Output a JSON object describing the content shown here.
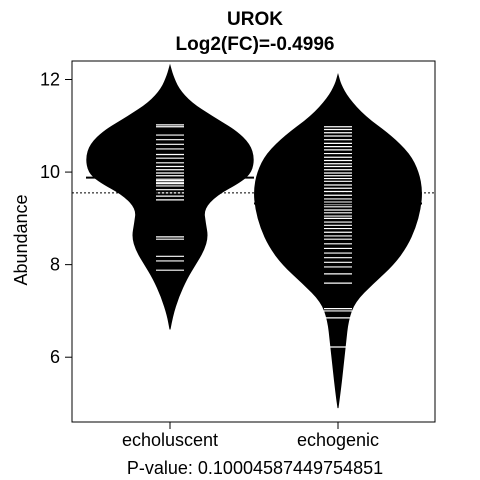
{
  "chart_data": {
    "type": "beanplot",
    "title": "UROK",
    "subtitle": "Log2(FC)=-0.4996",
    "xlabel": "P-value: 0.10004587449754851",
    "ylabel": "Abundance",
    "categories": [
      "echoluscent",
      "echogenic"
    ],
    "ylim": [
      4.6,
      12.4
    ],
    "yticks": [
      6,
      8,
      10,
      12
    ],
    "overall_mean": 9.55,
    "grid": false,
    "legend": "none",
    "colors": {
      "bean_fill": "#000000",
      "data_lines": "#ffffff",
      "axis": "#000000"
    },
    "beans": [
      {
        "name": "echoluscent",
        "mean": 9.88,
        "density_profile": [
          [
            6.6,
            0.0
          ],
          [
            6.9,
            0.03
          ],
          [
            7.3,
            0.1
          ],
          [
            7.7,
            0.2
          ],
          [
            8.0,
            0.3
          ],
          [
            8.3,
            0.4
          ],
          [
            8.6,
            0.45
          ],
          [
            8.9,
            0.42
          ],
          [
            9.2,
            0.4
          ],
          [
            9.5,
            0.55
          ],
          [
            9.8,
            0.85
          ],
          [
            10.0,
            0.97
          ],
          [
            10.3,
            1.0
          ],
          [
            10.6,
            0.95
          ],
          [
            10.9,
            0.78
          ],
          [
            11.2,
            0.5
          ],
          [
            11.5,
            0.25
          ],
          [
            11.8,
            0.1
          ],
          [
            12.1,
            0.03
          ],
          [
            12.3,
            0.0
          ]
        ],
        "observations": [
          7.88,
          8.08,
          8.18,
          8.55,
          8.6,
          9.4,
          9.48,
          9.55,
          9.62,
          9.7,
          9.75,
          9.78,
          9.82,
          9.85,
          9.92,
          9.98,
          10.05,
          10.12,
          10.2,
          10.3,
          10.38,
          10.5,
          10.6,
          10.7,
          10.8,
          10.98,
          11.02
        ]
      },
      {
        "name": "echogenic",
        "mean": 9.32,
        "density_profile": [
          [
            4.9,
            0.0
          ],
          [
            5.3,
            0.03
          ],
          [
            5.8,
            0.06
          ],
          [
            6.3,
            0.09
          ],
          [
            6.8,
            0.12
          ],
          [
            7.2,
            0.2
          ],
          [
            7.6,
            0.42
          ],
          [
            8.0,
            0.66
          ],
          [
            8.4,
            0.82
          ],
          [
            8.8,
            0.92
          ],
          [
            9.2,
            0.98
          ],
          [
            9.6,
            1.0
          ],
          [
            10.0,
            0.96
          ],
          [
            10.4,
            0.85
          ],
          [
            10.8,
            0.62
          ],
          [
            11.2,
            0.32
          ],
          [
            11.6,
            0.12
          ],
          [
            11.9,
            0.03
          ],
          [
            12.1,
            0.0
          ]
        ],
        "observations": [
          6.22,
          6.85,
          7.0,
          7.05,
          7.6,
          7.8,
          7.95,
          8.05,
          8.15,
          8.25,
          8.35,
          8.45,
          8.55,
          8.62,
          8.7,
          8.78,
          8.85,
          8.92,
          9.0,
          9.05,
          9.12,
          9.18,
          9.25,
          9.3,
          9.35,
          9.42,
          9.5,
          9.58,
          9.65,
          9.72,
          9.8,
          9.86,
          9.92,
          9.98,
          10.05,
          10.12,
          10.18,
          10.25,
          10.32,
          10.4,
          10.48,
          10.55,
          10.62,
          10.7,
          10.78,
          10.85,
          10.92,
          10.98
        ]
      }
    ]
  }
}
